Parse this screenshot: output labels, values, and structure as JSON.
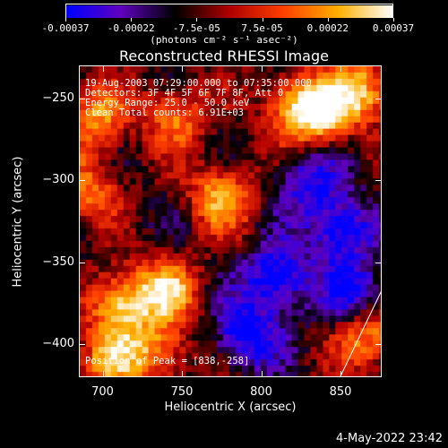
{
  "colorbar": {
    "tick_labels": [
      "-0.00037",
      "-0.00022",
      "-7.5e-05",
      "7.5e-05",
      "0.00022",
      "0.00037"
    ],
    "units": "(photons cm⁻² s⁻¹ asec⁻²)",
    "colormap": [
      "#0000ff",
      "#6000c0",
      "#000000",
      "#b00000",
      "#ff4000",
      "#ffb000",
      "#ffffff"
    ]
  },
  "plot": {
    "title": "Reconstructed RHESSI Image",
    "info_lines": [
      "19-Aug-2003 07:29:00.000 to 07:35:00.000",
      "Detectors: 3F 4F 5F 6F 7F 8F, Att 0",
      "Energy Range: 25.0 - 50.0 keV",
      "Clean      Total counts: 6.91E+03"
    ],
    "peak_text": "Position of Peak = [838,-258]"
  },
  "chart_data": {
    "type": "heatmap",
    "title": "Reconstructed RHESSI Image",
    "xlabel": "Heliocentric X (arcsec)",
    "ylabel": "Heliocentric Y (arcsec)",
    "xlim": [
      685,
      876
    ],
    "ylim": [
      -420,
      -230
    ],
    "x_ticks": [
      700,
      750,
      800,
      850
    ],
    "y_ticks": [
      -250,
      -300,
      -350,
      -400
    ],
    "x_tick_labels": [
      "700",
      "750",
      "800",
      "850"
    ],
    "y_tick_labels": [
      "−250",
      "−300",
      "−350",
      "−400"
    ],
    "value_range": [
      -0.00037,
      0.00037
    ],
    "peak": [
      838,
      -258
    ],
    "bright_sources": [
      {
        "x": 838,
        "y": -258,
        "v": 1.0
      },
      {
        "x": 710,
        "y": -375,
        "v": 0.95
      },
      {
        "x": 740,
        "y": -368,
        "v": 0.9
      },
      {
        "x": 775,
        "y": -310,
        "v": 0.85
      },
      {
        "x": 695,
        "y": -262,
        "v": 0.75
      },
      {
        "x": 745,
        "y": -260,
        "v": 0.7
      },
      {
        "x": 865,
        "y": -245,
        "v": 0.85
      },
      {
        "x": 868,
        "y": -395,
        "v": 0.8
      },
      {
        "x": 690,
        "y": -305,
        "v": 0.65
      },
      {
        "x": 820,
        "y": -255,
        "v": 0.7
      },
      {
        "x": 735,
        "y": -405,
        "v": 0.7
      },
      {
        "x": 705,
        "y": -410,
        "v": 0.75
      }
    ],
    "dark_sources": [
      {
        "x": 810,
        "y": -360,
        "v": -0.9
      },
      {
        "x": 850,
        "y": -330,
        "v": -0.85
      },
      {
        "x": 790,
        "y": -395,
        "v": -0.8
      },
      {
        "x": 830,
        "y": -300,
        "v": -0.6
      },
      {
        "x": 860,
        "y": -370,
        "v": -0.7
      }
    ]
  },
  "timestamp": "4-May-2022 23:42"
}
